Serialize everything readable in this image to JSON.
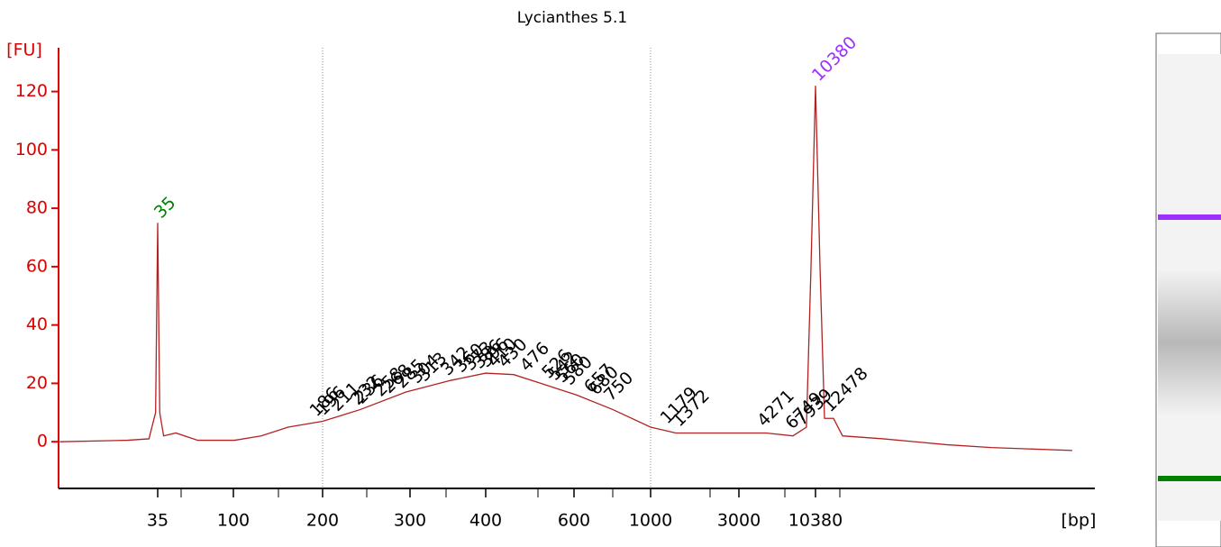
{
  "chart_data": {
    "type": "line",
    "title": "Lycianthes 5.1",
    "y_label": "[FU]",
    "x_label": "[bp]",
    "ylim": [
      -16,
      135
    ],
    "yticks": [
      0,
      20,
      40,
      60,
      80,
      100,
      120
    ],
    "xticks": [
      35,
      100,
      200,
      300,
      400,
      600,
      1000,
      3000,
      10380
    ],
    "axis_color": "#dd0000",
    "series": [
      {
        "color": "#b22222",
        "x": [
          9,
          23,
          31,
          34,
          35,
          36,
          38,
          45,
          61,
          101,
          124,
          153,
          200,
          238,
          294,
          350,
          400,
          455,
          515,
          611,
          778,
          1000,
          1369,
          2397,
          4649,
          7206,
          8960,
          9650,
          10380,
          11166,
          12012,
          13900,
          16090,
          31030,
          86150,
          178800,
          665600
        ],
        "values": [
          0,
          0.5,
          1,
          10,
          75,
          10,
          2,
          3,
          0.5,
          0.5,
          2,
          5,
          7,
          11,
          17,
          21,
          23.5,
          23,
          20,
          16,
          11,
          5,
          3,
          3,
          3,
          2,
          5,
          60,
          122,
          60,
          8,
          8,
          2,
          1,
          -1,
          -2,
          -3
        ]
      }
    ],
    "lower_marker": {
      "value": 35,
      "color": "#008000"
    },
    "upper_marker": {
      "value": 10380,
      "color": "#9b30ff"
    },
    "peaks": {
      "color": "#000000",
      "values": [
        186,
        196,
        211,
        232,
        236,
        258,
        268,
        285,
        304,
        313,
        342,
        360,
        373,
        386,
        396,
        410,
        430,
        476,
        526,
        542,
        560,
        580,
        657,
        680,
        750,
        1179,
        1372,
        4271,
        6749,
        7939,
        12478
      ]
    }
  }
}
